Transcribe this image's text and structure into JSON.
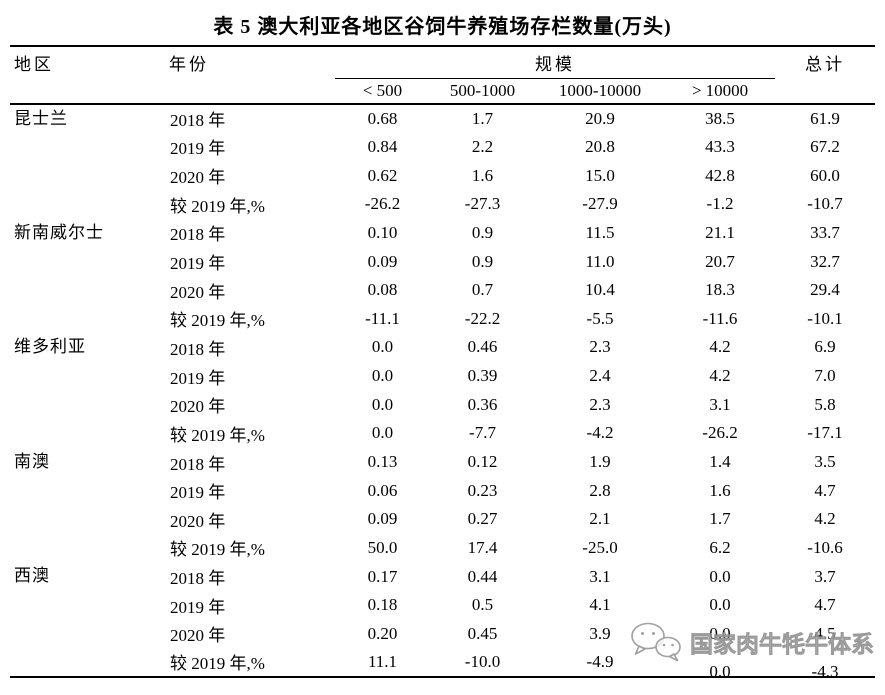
{
  "title": "表 5 澳大利亚各地区谷饲牛养殖场存栏数量(万头)",
  "colors": {
    "text": "#000000",
    "rule": "#000000",
    "watermark_gray": "#a6a6a6"
  },
  "table": {
    "headers": {
      "region": "地区",
      "year": "年份",
      "scale": "规模",
      "total": "总计",
      "scale_cols": [
        "< 500",
        "500-1000",
        "1000-10000",
        "> 10000"
      ]
    },
    "groups": [
      {
        "region": "昆士兰",
        "rows": [
          {
            "year": "2018 年",
            "values": [
              "0.68",
              "1.7",
              "20.9",
              "38.5",
              "61.9"
            ]
          },
          {
            "year": "2019 年",
            "values": [
              "0.84",
              "2.2",
              "20.8",
              "43.3",
              "67.2"
            ]
          },
          {
            "year": "2020 年",
            "values": [
              "0.62",
              "1.6",
              "15.0",
              "42.8",
              "60.0"
            ]
          },
          {
            "year": "较 2019 年,%",
            "values": [
              "-26.2",
              "-27.3",
              "-27.9",
              "-1.2",
              "-10.7"
            ]
          }
        ]
      },
      {
        "region": "新南威尔士",
        "rows": [
          {
            "year": "2018 年",
            "values": [
              "0.10",
              "0.9",
              "11.5",
              "21.1",
              "33.7"
            ]
          },
          {
            "year": "2019 年",
            "values": [
              "0.09",
              "0.9",
              "11.0",
              "20.7",
              "32.7"
            ]
          },
          {
            "year": "2020 年",
            "values": [
              "0.08",
              "0.7",
              "10.4",
              "18.3",
              "29.4"
            ]
          },
          {
            "year": "较 2019 年,%",
            "values": [
              "-11.1",
              "-22.2",
              "-5.5",
              "-11.6",
              "-10.1"
            ]
          }
        ]
      },
      {
        "region": "维多利亚",
        "rows": [
          {
            "year": "2018 年",
            "values": [
              "0.0",
              "0.46",
              "2.3",
              "4.2",
              "6.9"
            ]
          },
          {
            "year": "2019 年",
            "values": [
              "0.0",
              "0.39",
              "2.4",
              "4.2",
              "7.0"
            ]
          },
          {
            "year": "2020 年",
            "values": [
              "0.0",
              "0.36",
              "2.3",
              "3.1",
              "5.8"
            ]
          },
          {
            "year": "较 2019 年,%",
            "values": [
              "0.0",
              "-7.7",
              "-4.2",
              "-26.2",
              "-17.1"
            ]
          }
        ]
      },
      {
        "region": "南澳",
        "rows": [
          {
            "year": "2018 年",
            "values": [
              "0.13",
              "0.12",
              "1.9",
              "1.4",
              "3.5"
            ]
          },
          {
            "year": "2019 年",
            "values": [
              "0.06",
              "0.23",
              "2.8",
              "1.6",
              "4.7"
            ]
          },
          {
            "year": "2020 年",
            "values": [
              "0.09",
              "0.27",
              "2.1",
              "1.7",
              "4.2"
            ]
          },
          {
            "year": "较 2019 年,%",
            "values": [
              "50.0",
              "17.4",
              "-25.0",
              "6.2",
              "-10.6"
            ]
          }
        ]
      },
      {
        "region": "西澳",
        "rows": [
          {
            "year": "2018 年",
            "values": [
              "0.17",
              "0.44",
              "3.1",
              "0.0",
              "3.7"
            ]
          },
          {
            "year": "2019 年",
            "values": [
              "0.18",
              "0.5",
              "4.1",
              "0.0",
              "4.7"
            ]
          },
          {
            "year": "2020 年",
            "values": [
              "0.20",
              "0.45",
              "3.9",
              "0.0",
              "4.5"
            ]
          },
          {
            "year": "较 2019 年,%",
            "values": [
              "11.1",
              "-10.0",
              "-4.9",
              "0.0",
              "-4.3"
            ]
          }
        ]
      }
    ]
  },
  "watermark": {
    "text": "国家肉牛牦牛体系",
    "icon": "wechat-icon"
  }
}
